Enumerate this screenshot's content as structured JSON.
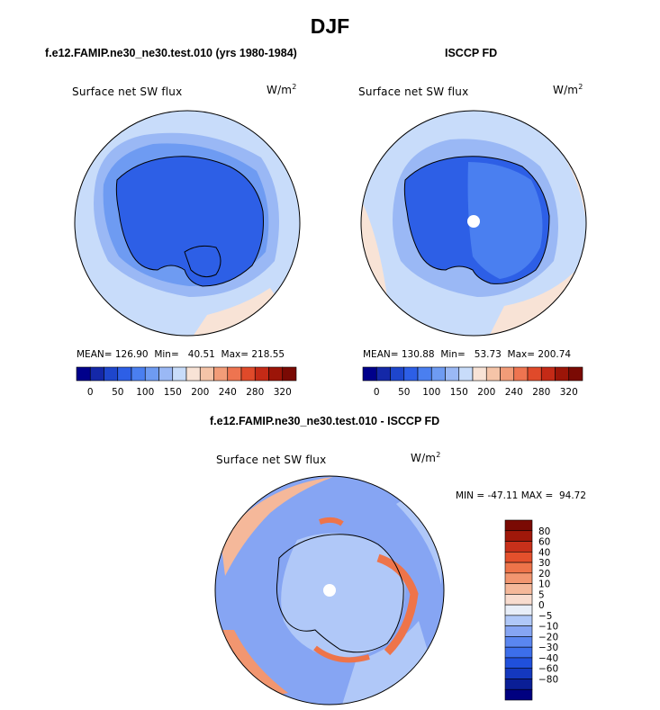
{
  "title": "DJF",
  "colors": {
    "absolute_scale": [
      "#00008B",
      "#1428A8",
      "#1E46CC",
      "#2D5FE6",
      "#4A7FF0",
      "#6E9BF2",
      "#9AB8F5",
      "#C8DCFA",
      "#F8E3D6",
      "#F5C4A8",
      "#F29C78",
      "#EE7450",
      "#E04A2A",
      "#C42A16",
      "#9C1508",
      "#7A0A04"
    ],
    "diff_scale": [
      "#000080",
      "#0A1E96",
      "#1438BE",
      "#2050DC",
      "#3C6EEB",
      "#5A86F0",
      "#86A5F3",
      "#B0C8F8",
      "#E8EEF8",
      "#F8DCCF",
      "#F5B89A",
      "#F29670",
      "#EE744A",
      "#E4502C",
      "#C8301A",
      "#A0180A",
      "#7A0A04"
    ]
  },
  "panels": {
    "model": {
      "heading": "f.e12.FAMIP.ne30_ne30.test.010 (yrs 1980-1984)",
      "variable": "Surface net SW flux",
      "units_main": "W/m",
      "units_sup": "2",
      "stats": {
        "mean_label": "MEAN=",
        "mean": "126.90",
        "min_label": "Min=",
        "min": "40.51",
        "max_label": "Max=",
        "max": "218.55"
      },
      "colorbar_labels": [
        "0",
        "50",
        "100",
        "150",
        "200",
        "240",
        "280",
        "320"
      ]
    },
    "obs": {
      "heading": "ISCCP FD",
      "variable": "Surface net SW flux",
      "units_main": "W/m",
      "units_sup": "2",
      "stats": {
        "mean_label": "MEAN=",
        "mean": "130.88",
        "min_label": "Min=",
        "min": "53.73",
        "max_label": "Max=",
        "max": "200.74"
      },
      "colorbar_labels": [
        "0",
        "50",
        "100",
        "150",
        "200",
        "240",
        "280",
        "320"
      ]
    },
    "diff": {
      "heading": "f.e12.FAMIP.ne30_ne30.test.010 - ISCCP FD",
      "variable": "Surface net SW flux",
      "units_main": "W/m",
      "units_sup": "2",
      "minmax": {
        "min_label": "MIN =",
        "min": "-47.11",
        "max_label": "MAX =",
        "max": "94.72"
      },
      "colorbar_labels": [
        "80",
        "60",
        "40",
        "30",
        "20",
        "10",
        "5",
        "0",
        "−5",
        "−10",
        "−20",
        "−30",
        "−40",
        "−60",
        "−80"
      ]
    }
  }
}
